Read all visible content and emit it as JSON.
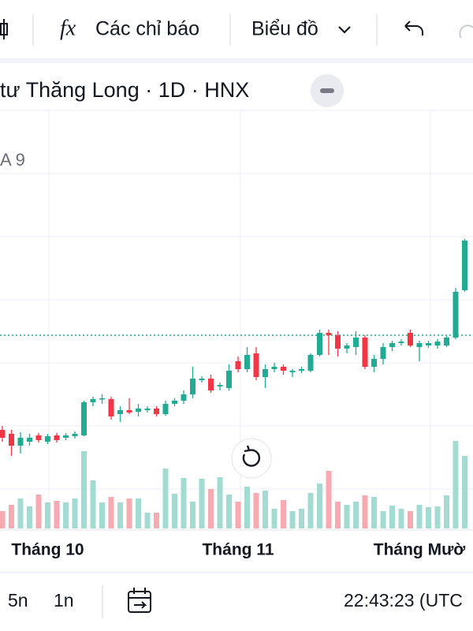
{
  "toolbar": {
    "indicator_icon": "fx",
    "indicators": "Các chỉ báo",
    "chart_menu": "Biểu đồ"
  },
  "legend": {
    "symbol": "tư Thăng Long · 1D · HNX",
    "study": "A 9"
  },
  "chart_data": {
    "type": "candlestick",
    "categories": [
      null,
      null,
      null,
      null,
      null,
      "Tháng 10",
      null,
      null,
      null,
      null,
      null,
      null,
      null,
      null,
      null,
      null,
      null,
      null,
      null,
      null,
      null,
      null,
      null,
      null,
      null,
      null,
      "Tháng 11",
      null,
      null,
      null,
      null,
      null,
      null,
      null,
      null,
      null,
      null,
      null,
      null,
      null,
      null,
      null,
      null,
      null,
      null,
      null,
      "Tháng Mườ",
      null,
      null,
      null,
      null,
      null
    ],
    "open": [
      255,
      250,
      235,
      240,
      248,
      240,
      248,
      245,
      247,
      248,
      290,
      294,
      294,
      275,
      280,
      278,
      280,
      282,
      275,
      288,
      292,
      300,
      318,
      320,
      310,
      308,
      342,
      332,
      352,
      322,
      332,
      335,
      328,
      330,
      330,
      350,
      378,
      375,
      358,
      360,
      372,
      335,
      345,
      360,
      365,
      378,
      360,
      362,
      362,
      362,
      372,
      432
    ],
    "high": [
      260,
      255,
      252,
      250,
      251,
      250,
      251,
      251,
      253,
      292,
      297,
      300,
      297,
      285,
      295,
      288,
      285,
      285,
      292,
      295,
      305,
      335,
      323,
      325,
      315,
      338,
      348,
      360,
      360,
      338,
      340,
      338,
      332,
      335,
      352,
      382,
      382,
      380,
      365,
      380,
      375,
      350,
      365,
      368,
      370,
      382,
      368,
      368,
      370,
      374,
      435,
      497
    ],
    "low": [
      240,
      222,
      225,
      235,
      239,
      237,
      239,
      242,
      244,
      247,
      285,
      288,
      268,
      265,
      275,
      272,
      277,
      272,
      273,
      285,
      288,
      295,
      315,
      302,
      305,
      305,
      328,
      328,
      318,
      308,
      328,
      325,
      322,
      327,
      328,
      348,
      350,
      348,
      352,
      350,
      332,
      328,
      338,
      355,
      362,
      360,
      342,
      359,
      358,
      360,
      370,
      430
    ],
    "close": [
      245,
      235,
      245,
      245,
      242,
      247,
      242,
      248,
      250,
      290,
      294,
      295,
      272,
      280,
      277,
      282,
      282,
      275,
      288,
      292,
      300,
      320,
      320,
      305,
      312,
      330,
      332,
      350,
      322,
      332,
      335,
      330,
      330,
      332,
      350,
      378,
      375,
      358,
      362,
      372,
      335,
      345,
      360,
      365,
      367,
      362,
      365,
      365,
      367,
      372,
      430,
      495
    ],
    "volume": [
      22,
      30,
      38,
      28,
      43,
      33,
      35,
      33,
      38,
      98,
      61,
      33,
      40,
      33,
      38,
      38,
      20,
      20,
      76,
      44,
      64,
      34,
      63,
      50,
      65,
      43,
      34,
      53,
      45,
      48,
      25,
      36,
      22,
      25,
      45,
      57,
      73,
      34,
      30,
      34,
      42,
      40,
      22,
      29,
      25,
      22,
      30,
      27,
      28,
      42,
      111,
      92
    ],
    "ylim": [
      130,
      660
    ],
    "up_color": "#22ab94",
    "down_color": "#f23645",
    "up_volume_color": "#a3dbd2",
    "down_volume_color": "#f7aab2"
  },
  "bottom_bar": {
    "range_5d": "5n",
    "range_1d": "1n",
    "clock": "22:43:23 (UTC"
  }
}
